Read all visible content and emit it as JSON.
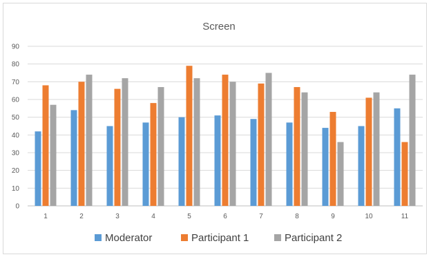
{
  "chart_data": {
    "type": "bar",
    "title": "Screen",
    "xlabel": "",
    "ylabel": "",
    "categories": [
      "1",
      "2",
      "3",
      "4",
      "5",
      "6",
      "7",
      "8",
      "9",
      "10",
      "11"
    ],
    "ylim": [
      0,
      90
    ],
    "yticks": [
      0,
      10,
      20,
      30,
      40,
      50,
      60,
      70,
      80,
      90
    ],
    "grid": true,
    "legend_position": "bottom",
    "series": [
      {
        "name": "Moderator",
        "color": "#5b9bd5",
        "values": [
          42,
          54,
          45,
          47,
          50,
          51,
          49,
          47,
          44,
          45,
          55
        ]
      },
      {
        "name": "Participant 1",
        "color": "#ed7d31",
        "values": [
          68,
          70,
          66,
          58,
          79,
          74,
          69,
          67,
          53,
          61,
          36
        ]
      },
      {
        "name": "Participant 2",
        "color": "#a5a5a5",
        "values": [
          57,
          74,
          72,
          67,
          72,
          70,
          75,
          64,
          36,
          64,
          74
        ]
      }
    ]
  }
}
